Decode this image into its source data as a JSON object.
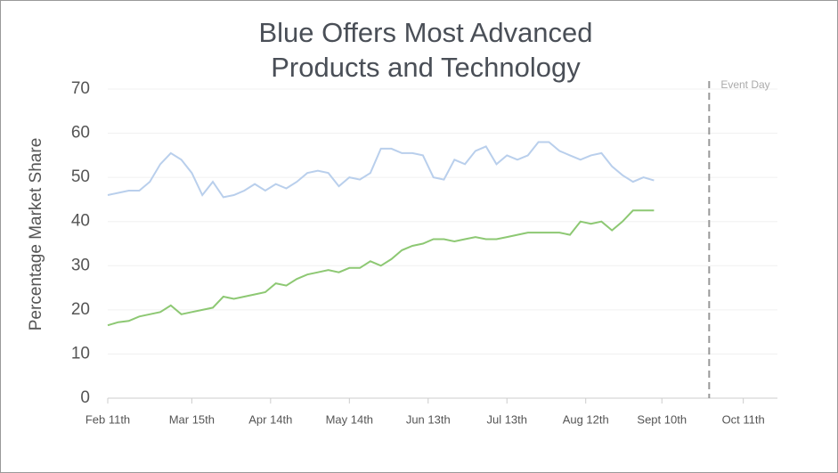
{
  "chart_data": {
    "type": "line",
    "title": "Blue Offers Most Advanced Products and Technology",
    "ylabel": "Percentage Market Share",
    "x": [
      "02-11",
      "02-15",
      "02-19",
      "02-23",
      "02-27",
      "03-03",
      "03-07",
      "03-11",
      "03-15",
      "03-19",
      "03-23",
      "03-27",
      "03-31",
      "04-04",
      "04-08",
      "04-12",
      "04-16",
      "04-20",
      "04-24",
      "04-28",
      "05-02",
      "05-06",
      "05-10",
      "05-14",
      "05-18",
      "05-22",
      "05-26",
      "05-30",
      "06-03",
      "06-07",
      "06-11",
      "06-15",
      "06-19",
      "06-23",
      "06-27",
      "07-01",
      "07-05",
      "07-09",
      "07-13",
      "07-17",
      "07-21",
      "07-25",
      "07-29",
      "08-02",
      "08-06",
      "08-10",
      "08-14",
      "08-18",
      "08-22",
      "08-26",
      "08-30",
      "09-03",
      "09-07"
    ],
    "series": [
      {
        "color": "#b9cfec",
        "values": [
          46,
          46.5,
          47,
          47,
          49,
          53,
          55.5,
          54,
          51,
          46,
          49,
          45.5,
          46,
          47,
          48.5,
          47,
          48.5,
          47.5,
          49,
          51,
          51.5,
          51,
          48,
          50,
          49.5,
          51,
          56.5,
          56.5,
          55.5,
          55.5,
          55,
          50,
          49.5,
          54,
          53,
          56,
          57,
          53,
          55,
          54,
          55,
          58,
          58,
          56,
          55,
          54,
          55,
          55.5,
          52.5,
          50.5,
          49,
          50,
          49.3
        ]
      },
      {
        "color": "#8dc873",
        "values": [
          16.5,
          17.2,
          17.5,
          18.5,
          19,
          19.5,
          21,
          19,
          19.5,
          20,
          20.5,
          23,
          22.5,
          23,
          23.5,
          24,
          26,
          25.5,
          27,
          28,
          28.5,
          29,
          28.5,
          29.5,
          29.5,
          31,
          30,
          31.5,
          33.5,
          34.5,
          35,
          36,
          36,
          35.5,
          36,
          36.5,
          36,
          36,
          36.5,
          37,
          37.5,
          37.5,
          37.5,
          37.5,
          37,
          40,
          39.5,
          40,
          38,
          40,
          42.5,
          42.5,
          42.5
        ]
      }
    ],
    "xlim": [
      "02-11",
      "10-24"
    ],
    "xticks": [
      {
        "value": "02-11",
        "label": "Feb 11th"
      },
      {
        "value": "03-15",
        "label": "Mar 15th"
      },
      {
        "value": "04-14",
        "label": "Apr 14th"
      },
      {
        "value": "05-14",
        "label": "May 14th"
      },
      {
        "value": "06-13",
        "label": "Jun 13th"
      },
      {
        "value": "07-13",
        "label": "Jul 13th"
      },
      {
        "value": "08-12",
        "label": "Aug 12th"
      },
      {
        "value": "09-10",
        "label": "Sept 10th"
      },
      {
        "value": "10-11",
        "label": "Oct 11th"
      }
    ],
    "ylim": [
      0,
      70
    ],
    "yticks": [
      0,
      10,
      20,
      30,
      40,
      50,
      60,
      70
    ],
    "grid": true,
    "event": {
      "x": "09-28",
      "label": "Event Day"
    }
  }
}
